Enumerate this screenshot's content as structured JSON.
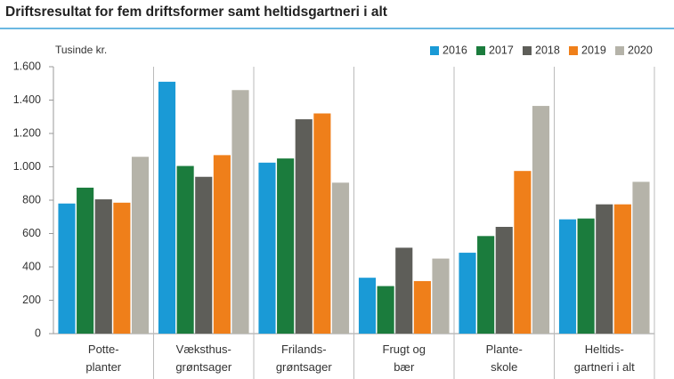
{
  "chart_data": {
    "type": "bar",
    "title": "Driftsresultat for fem driftsformer samt heltidsgartneri i alt",
    "y_axis_label": "Tusinde kr.",
    "categories": [
      "Potte-\nplanter",
      "Væksthus-\ngrøntsager",
      "Frilands-\ngrøntsager",
      "Frugt og\nbær",
      "Plante-\nskole",
      "Heltids-\ngartneri i alt"
    ],
    "series": [
      {
        "name": "2016",
        "color": "#1a9ad6",
        "values": [
          780,
          1510,
          1025,
          335,
          485,
          685
        ]
      },
      {
        "name": "2017",
        "color": "#1b7c3d",
        "values": [
          875,
          1005,
          1050,
          285,
          585,
          690
        ]
      },
      {
        "name": "2018",
        "color": "#5e5e59",
        "values": [
          805,
          940,
          1285,
          515,
          640,
          775
        ]
      },
      {
        "name": "2019",
        "color": "#ef7f1a",
        "values": [
          785,
          1070,
          1320,
          315,
          975,
          775
        ]
      },
      {
        "name": "2020",
        "color": "#b5b3a9",
        "values": [
          1060,
          1460,
          905,
          450,
          1365,
          910
        ]
      }
    ],
    "ylim": [
      0,
      1600
    ],
    "yticks": [
      0,
      200,
      400,
      600,
      800,
      {
        "value": 1000,
        "label": "1.000"
      },
      {
        "value": 1200,
        "label": "1.200"
      },
      {
        "value": 1400,
        "label": "1.400"
      },
      {
        "value": 1600,
        "label": "1.600"
      }
    ],
    "legend": "top-right"
  }
}
